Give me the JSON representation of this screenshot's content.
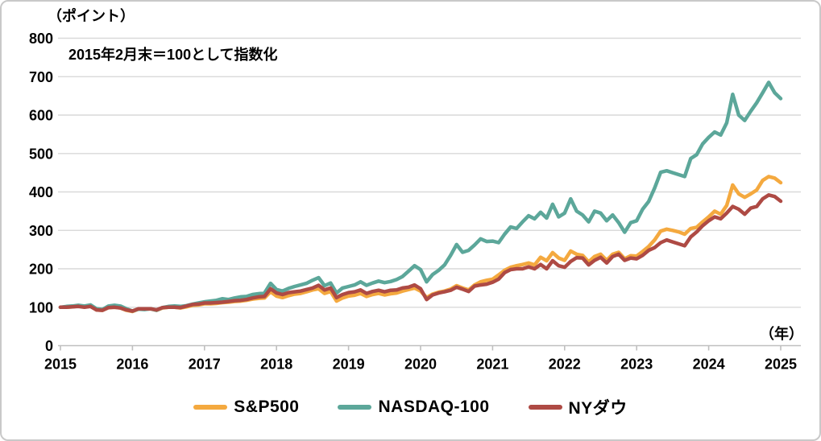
{
  "chart_data": {
    "type": "line",
    "unit_y": "（ポイント）",
    "unit_x": "（年）",
    "annotation": "2015年2月末＝100として指数化",
    "x_start": "2015-02",
    "x_step_months": 1,
    "x_tick_labels": [
      "2015",
      "2016",
      "2017",
      "2018",
      "2019",
      "2020",
      "2021",
      "2022",
      "2023",
      "2024",
      "2025"
    ],
    "y_ticks": [
      0,
      100,
      200,
      300,
      400,
      500,
      600,
      700,
      800
    ],
    "ylim": [
      0,
      800
    ],
    "grid": true,
    "legend_position": "bottom",
    "colors": {
      "grid": "#d9d9d9",
      "axis": "#bfbfbf",
      "text": "#000000",
      "background": "#ffffff",
      "border": "#c9c9c9"
    },
    "series": [
      {
        "name": "S&P500",
        "color": "#F4A93F",
        "values": [
          100,
          100,
          101,
          103,
          101,
          103,
          93,
          92,
          99,
          100,
          98,
          92,
          89,
          95,
          95,
          96,
          92,
          98,
          100,
          100,
          98,
          101,
          105,
          106,
          109,
          109,
          110,
          112,
          113,
          115,
          116,
          118,
          121,
          123,
          124,
          140,
          129,
          125,
          130,
          134,
          136,
          140,
          145,
          148,
          136,
          141,
          116,
          124,
          129,
          131,
          136,
          128,
          133,
          136,
          132,
          135,
          137,
          142,
          146,
          150,
          142,
          125,
          134,
          139,
          142,
          147,
          156,
          150,
          145,
          158,
          166,
          170,
          173,
          184,
          196,
          204,
          208,
          211,
          215,
          210,
          230,
          221,
          242,
          228,
          222,
          246,
          238,
          235,
          218,
          232,
          238,
          222,
          238,
          243,
          226,
          234,
          233,
          245,
          258,
          275,
          298,
          303,
          300,
          296,
          290,
          305,
          308,
          322,
          335,
          350,
          342,
          365,
          418,
          395,
          386,
          395,
          405,
          430,
          440,
          436,
          424
        ]
      },
      {
        "name": "NASDAQ-100",
        "color": "#5CA79A",
        "values": [
          100,
          102,
          103,
          105,
          103,
          106,
          96,
          94,
          103,
          105,
          103,
          96,
          90,
          95,
          94,
          96,
          92,
          99,
          102,
          103,
          102,
          104,
          108,
          111,
          114,
          116,
          118,
          122,
          120,
          124,
          127,
          128,
          133,
          135,
          137,
          162,
          146,
          142,
          149,
          154,
          158,
          162,
          170,
          177,
          156,
          163,
          137,
          150,
          154,
          158,
          166,
          157,
          163,
          168,
          164,
          167,
          172,
          180,
          194,
          208,
          198,
          166,
          185,
          196,
          210,
          235,
          263,
          243,
          248,
          262,
          278,
          271,
          272,
          268,
          290,
          309,
          305,
          322,
          338,
          330,
          347,
          332,
          368,
          335,
          345,
          382,
          350,
          340,
          322,
          350,
          345,
          325,
          340,
          320,
          295,
          320,
          325,
          355,
          375,
          410,
          451,
          455,
          450,
          445,
          440,
          487,
          497,
          525,
          542,
          556,
          548,
          580,
          654,
          600,
          586,
          610,
          632,
          658,
          685,
          658,
          643
        ]
      },
      {
        "name": "NYダウ",
        "color": "#AE4A44",
        "values": [
          100,
          100,
          101,
          102,
          100,
          102,
          93,
          92,
          99,
          100,
          98,
          93,
          90,
          96,
          96,
          96,
          93,
          99,
          100,
          100,
          99,
          103,
          107,
          108,
          111,
          111,
          112,
          113,
          115,
          117,
          118,
          120,
          124,
          127,
          128,
          148,
          137,
          133,
          138,
          140,
          142,
          146,
          150,
          157,
          145,
          150,
          125,
          133,
          138,
          140,
          145,
          136,
          141,
          144,
          140,
          144,
          145,
          150,
          152,
          158,
          148,
          120,
          132,
          137,
          140,
          144,
          152,
          147,
          141,
          155,
          158,
          160,
          165,
          173,
          190,
          198,
          200,
          200,
          205,
          200,
          211,
          200,
          221,
          208,
          204,
          219,
          229,
          228,
          210,
          222,
          230,
          215,
          232,
          238,
          222,
          228,
          226,
          235,
          248,
          255,
          268,
          275,
          270,
          265,
          260,
          283,
          296,
          312,
          325,
          335,
          330,
          345,
          362,
          355,
          342,
          358,
          362,
          382,
          392,
          388,
          376
        ]
      }
    ]
  }
}
